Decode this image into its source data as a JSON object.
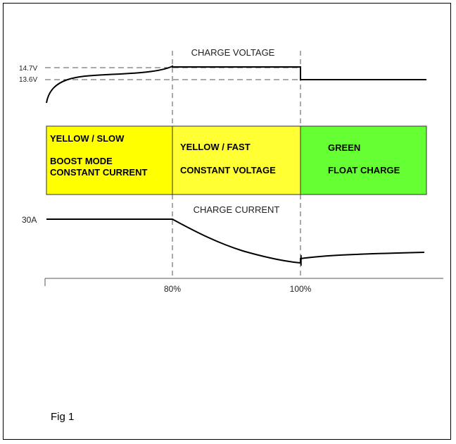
{
  "header": {
    "voltage_title": "CHARGE VOLTAGE",
    "current_title": "CHARGE CURRENT"
  },
  "voltage_axis": {
    "high_label": "14.7V",
    "low_label": "13.6V"
  },
  "current_axis": {
    "label": "30A"
  },
  "phases": [
    {
      "line1": "YELLOW / SLOW",
      "line2": "BOOST MODE",
      "line3": "CONSTANT CURRENT",
      "color": "#ffff00"
    },
    {
      "line1": "YELLOW / FAST",
      "line2": "CONSTANT VOLTAGE",
      "color": "#ffff33"
    },
    {
      "line1": "GREEN",
      "line2": "FLOAT CHARGE",
      "color": "#66ff33"
    }
  ],
  "x_ticks": [
    "80%",
    "100%"
  ],
  "caption": "Fig 1"
}
